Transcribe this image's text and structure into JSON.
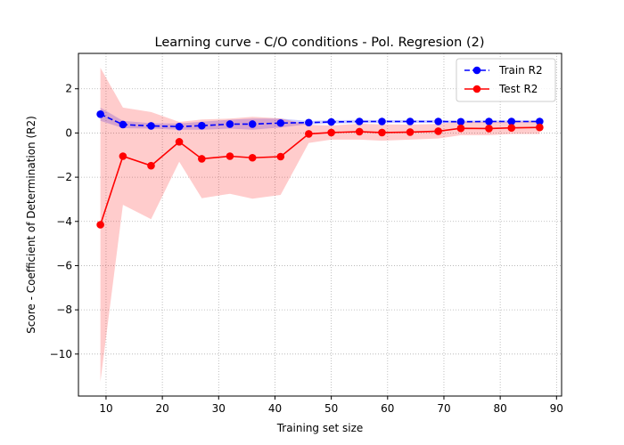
{
  "chart_data": {
    "type": "line",
    "title": "Learning curve - C/O conditions - Pol. Regresion (2)",
    "xlabel": "Training set size",
    "ylabel": "Score - Coefficient of Determination (R2)",
    "xlim": [
      5.1,
      90.9
    ],
    "ylim": [
      -11.9,
      3.6
    ],
    "xticks": [
      10,
      20,
      30,
      40,
      50,
      60,
      70,
      80,
      90
    ],
    "yticks": [
      2,
      0,
      -2,
      -4,
      -6,
      -8,
      -10
    ],
    "grid": true,
    "legend_position": "top-right",
    "x": [
      9,
      13,
      18,
      23,
      27,
      32,
      36,
      41,
      46,
      50,
      55,
      59,
      64,
      69,
      73,
      78,
      82,
      87
    ],
    "series": [
      {
        "name": "Train R2",
        "color": "#0000ff",
        "linestyle": "dashed",
        "marker": "circle",
        "values": [
          0.85,
          0.38,
          0.32,
          0.29,
          0.33,
          0.4,
          0.4,
          0.45,
          0.47,
          0.5,
          0.52,
          0.52,
          0.52,
          0.52,
          0.51,
          0.52,
          0.52,
          0.52
        ],
        "band_lower": [
          0.55,
          0.22,
          0.2,
          0.15,
          0.15,
          0.2,
          0.15,
          0.25,
          0.4,
          0.42,
          0.45,
          0.46,
          0.46,
          0.46,
          0.46,
          0.47,
          0.47,
          0.47
        ],
        "band_upper": [
          1.15,
          0.55,
          0.44,
          0.43,
          0.51,
          0.6,
          0.65,
          0.65,
          0.54,
          0.58,
          0.59,
          0.58,
          0.58,
          0.58,
          0.56,
          0.57,
          0.57,
          0.57
        ]
      },
      {
        "name": "Test R2",
        "color": "#ff0000",
        "linestyle": "solid",
        "marker": "circle",
        "values": [
          -4.15,
          -1.05,
          -1.48,
          -0.4,
          -1.17,
          -1.05,
          -1.12,
          -1.07,
          -0.04,
          0.02,
          0.06,
          0.02,
          0.04,
          0.08,
          0.21,
          0.2,
          0.23,
          0.25
        ],
        "band_lower": [
          -11.25,
          -3.25,
          -3.9,
          -1.3,
          -2.95,
          -2.75,
          -2.97,
          -2.8,
          -0.45,
          -0.3,
          -0.3,
          -0.35,
          -0.3,
          -0.25,
          -0.1,
          -0.1,
          -0.05,
          -0.05
        ],
        "band_upper": [
          2.95,
          1.15,
          0.95,
          0.5,
          0.61,
          0.65,
          0.73,
          0.66,
          0.37,
          0.34,
          0.42,
          0.39,
          0.38,
          0.41,
          0.52,
          0.5,
          0.51,
          0.55
        ]
      }
    ]
  }
}
